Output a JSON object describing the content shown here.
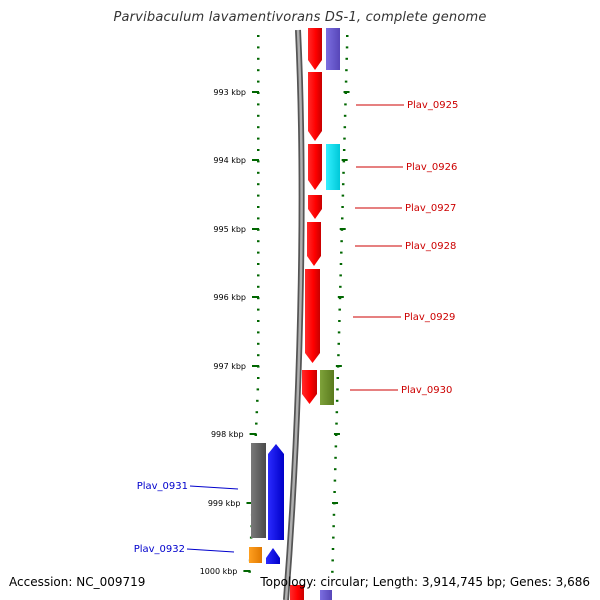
{
  "title": "Parvibaculum lavamentivorans DS-1, complete genome",
  "footer": {
    "accession": "Accession: NC_009719",
    "summary": "Topology: circular; Length: 3,914,745 bp; Genes: 3,686"
  },
  "colors": {
    "gene_red": "#ff0000",
    "label_red": "#cc0000",
    "label_blue": "#0000cc",
    "backbone": "#888888",
    "tick_green": "#006600",
    "purple": "#6a5acd",
    "cyan": "#00e5ee",
    "olive": "#6b8e23",
    "gray_feature": "#666666",
    "blue_feature": "#0000ff",
    "orange_feature": "#ff8c00"
  },
  "ruler": {
    "unit": "kbp",
    "ticks": [
      {
        "kbp": 993,
        "label": "993 kbp"
      },
      {
        "kbp": 994,
        "label": "994 kbp"
      },
      {
        "kbp": 995,
        "label": "995 kbp"
      },
      {
        "kbp": 996,
        "label": "996 kbp"
      },
      {
        "kbp": 997,
        "label": "997 kbp"
      },
      {
        "kbp": 998,
        "label": "998 kbp"
      },
      {
        "kbp": 999,
        "label": "999 kbp"
      },
      {
        "kbp": 1000,
        "label": "1000 kbp"
      }
    ]
  },
  "genes": [
    {
      "label": "Plav_0925",
      "strand": "reverse"
    },
    {
      "label": "Plav_0926",
      "strand": "reverse"
    },
    {
      "label": "Plav_0927",
      "strand": "reverse"
    },
    {
      "label": "Plav_0928",
      "strand": "reverse"
    },
    {
      "label": "Plav_0929",
      "strand": "reverse"
    },
    {
      "label": "Plav_0930",
      "strand": "reverse"
    },
    {
      "label": "Plav_0931",
      "strand": "forward"
    },
    {
      "label": "Plav_0932",
      "strand": "forward"
    }
  ]
}
